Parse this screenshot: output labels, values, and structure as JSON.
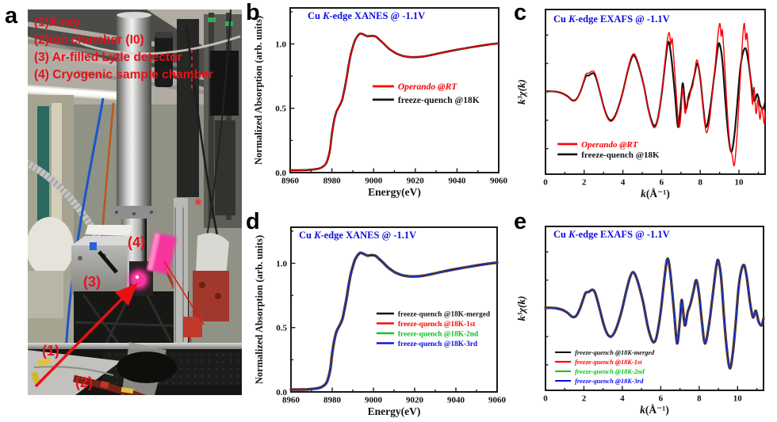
{
  "figure": {
    "background": "#ffffff",
    "panel_labels": {
      "a": "a",
      "b": "b",
      "c": "c",
      "d": "d",
      "e": "e"
    }
  },
  "photo": {
    "annotation_color": "#e8101b",
    "annotation_lines": {
      "line1": "(1)X-ray",
      "line2": "(2)ion chamber (I0)",
      "line3": "(3) Ar-filled Lytle detector",
      "line4": "(4) Cryogenic sample chamber"
    },
    "callout_labels": {
      "c1": "(1)",
      "c2": "(2)",
      "c3": "(3)",
      "c4": "(4)"
    }
  },
  "chart_data": {
    "shared_curves": {
      "xanes": [
        [
          8960,
          0.018
        ],
        [
          8964,
          0.018
        ],
        [
          8968,
          0.02
        ],
        [
          8971,
          0.024
        ],
        [
          8974,
          0.032
        ],
        [
          8976,
          0.05
        ],
        [
          8977.5,
          0.08
        ],
        [
          8979,
          0.17
        ],
        [
          8980,
          0.3
        ],
        [
          8981,
          0.4
        ],
        [
          8982,
          0.465
        ],
        [
          8983,
          0.5
        ],
        [
          8984,
          0.53
        ],
        [
          8985,
          0.57
        ],
        [
          8986,
          0.645
        ],
        [
          8987,
          0.73
        ],
        [
          8988,
          0.83
        ],
        [
          8989,
          0.915
        ],
        [
          8990,
          0.975
        ],
        [
          8991,
          1.025
        ],
        [
          8992,
          1.055
        ],
        [
          8993.5,
          1.08
        ],
        [
          8995,
          1.075
        ],
        [
          8997,
          1.06
        ],
        [
          8999,
          1.063
        ],
        [
          9001,
          1.058
        ],
        [
          9003,
          1.03
        ],
        [
          9005,
          1.0
        ],
        [
          9007,
          0.968
        ],
        [
          9009,
          0.944
        ],
        [
          9011,
          0.925
        ],
        [
          9014,
          0.907
        ],
        [
          9017,
          0.899
        ],
        [
          9020,
          0.897
        ],
        [
          9024,
          0.903
        ],
        [
          9028,
          0.915
        ],
        [
          9032,
          0.929
        ],
        [
          9036,
          0.943
        ],
        [
          9040,
          0.955
        ],
        [
          9045,
          0.969
        ],
        [
          9050,
          0.983
        ],
        [
          9055,
          0.995
        ],
        [
          9060,
          1.005
        ]
      ],
      "exafs_freeze_quench": [
        [
          0,
          0.01
        ],
        [
          0.3,
          0.01
        ],
        [
          0.6,
          0.0
        ],
        [
          0.9,
          -0.03
        ],
        [
          1.15,
          -0.08
        ],
        [
          1.4,
          -0.15
        ],
        [
          1.6,
          -0.13
        ],
        [
          1.8,
          0.0
        ],
        [
          2.0,
          0.2
        ],
        [
          2.1,
          0.28
        ],
        [
          2.25,
          0.29
        ],
        [
          2.45,
          0.33
        ],
        [
          2.6,
          0.26
        ],
        [
          2.8,
          0.02
        ],
        [
          3.0,
          -0.25
        ],
        [
          3.2,
          -0.44
        ],
        [
          3.4,
          -0.5
        ],
        [
          3.6,
          -0.42
        ],
        [
          3.8,
          -0.24
        ],
        [
          4.0,
          0.0
        ],
        [
          4.2,
          0.3
        ],
        [
          4.4,
          0.55
        ],
        [
          4.55,
          0.64
        ],
        [
          4.7,
          0.57
        ],
        [
          4.9,
          0.36
        ],
        [
          5.1,
          0.08
        ],
        [
          5.3,
          -0.28
        ],
        [
          5.5,
          -0.53
        ],
        [
          5.65,
          -0.6
        ],
        [
          5.8,
          -0.48
        ],
        [
          6.0,
          -0.05
        ],
        [
          6.2,
          0.55
        ],
        [
          6.35,
          0.88
        ],
        [
          6.5,
          0.62
        ],
        [
          6.7,
          -0.08
        ],
        [
          6.85,
          -0.62
        ],
        [
          7.0,
          -0.2
        ],
        [
          7.1,
          0.15
        ],
        [
          7.25,
          -0.3
        ],
        [
          7.4,
          -0.07
        ],
        [
          7.55,
          0.08
        ],
        [
          7.7,
          0.3
        ],
        [
          7.85,
          0.5
        ],
        [
          8.0,
          0.24
        ],
        [
          8.15,
          -0.26
        ],
        [
          8.3,
          -0.62
        ],
        [
          8.5,
          -0.32
        ],
        [
          8.7,
          0.22
        ],
        [
          8.9,
          0.76
        ],
        [
          9.0,
          0.84
        ],
        [
          9.15,
          0.52
        ],
        [
          9.3,
          -0.18
        ],
        [
          9.45,
          -0.76
        ],
        [
          9.6,
          -1.06
        ],
        [
          9.75,
          -0.8
        ],
        [
          9.9,
          -0.26
        ],
        [
          10.05,
          0.36
        ],
        [
          10.2,
          0.68
        ],
        [
          10.35,
          0.76
        ],
        [
          10.5,
          0.5
        ],
        [
          10.65,
          0.1
        ],
        [
          10.8,
          -0.16
        ],
        [
          10.95,
          -0.04
        ],
        [
          11.1,
          -0.24
        ],
        [
          11.25,
          -0.3
        ],
        [
          11.35,
          -0.18
        ]
      ],
      "exafs_operando_rt": [
        [
          0,
          0.01
        ],
        [
          0.3,
          0.01
        ],
        [
          0.6,
          0.0
        ],
        [
          0.9,
          -0.04
        ],
        [
          1.15,
          -0.09
        ],
        [
          1.4,
          -0.16
        ],
        [
          1.6,
          -0.14
        ],
        [
          1.8,
          0.0
        ],
        [
          2.0,
          0.22
        ],
        [
          2.1,
          0.32
        ],
        [
          2.25,
          0.33
        ],
        [
          2.45,
          0.37
        ],
        [
          2.6,
          0.29
        ],
        [
          2.8,
          0.03
        ],
        [
          3.0,
          -0.26
        ],
        [
          3.2,
          -0.46
        ],
        [
          3.4,
          -0.52
        ],
        [
          3.6,
          -0.44
        ],
        [
          3.8,
          -0.26
        ],
        [
          4.0,
          -0.01
        ],
        [
          4.2,
          0.31
        ],
        [
          4.4,
          0.58
        ],
        [
          4.55,
          0.67
        ],
        [
          4.7,
          0.6
        ],
        [
          4.9,
          0.38
        ],
        [
          5.1,
          0.07
        ],
        [
          5.3,
          -0.3
        ],
        [
          5.5,
          -0.56
        ],
        [
          5.65,
          -0.63
        ],
        [
          5.8,
          -0.5
        ],
        [
          6.0,
          -0.04
        ],
        [
          6.15,
          0.45
        ],
        [
          6.3,
          0.92
        ],
        [
          6.4,
          1.04
        ],
        [
          6.48,
          0.84
        ],
        [
          6.55,
          0.93
        ],
        [
          6.65,
          0.5
        ],
        [
          6.75,
          0.02
        ],
        [
          6.85,
          -0.48
        ],
        [
          6.92,
          -0.62
        ],
        [
          7.0,
          -0.4
        ],
        [
          7.08,
          0.05
        ],
        [
          7.15,
          -0.12
        ],
        [
          7.22,
          -0.38
        ],
        [
          7.32,
          -0.2
        ],
        [
          7.42,
          -0.12
        ],
        [
          7.52,
          0.02
        ],
        [
          7.62,
          0.12
        ],
        [
          7.72,
          0.38
        ],
        [
          7.82,
          0.56
        ],
        [
          7.92,
          0.44
        ],
        [
          8.02,
          0.18
        ],
        [
          8.12,
          -0.18
        ],
        [
          8.22,
          -0.52
        ],
        [
          8.32,
          -0.72
        ],
        [
          8.45,
          -0.56
        ],
        [
          8.55,
          -0.28
        ],
        [
          8.65,
          0.06
        ],
        [
          8.75,
          0.38
        ],
        [
          8.85,
          0.78
        ],
        [
          8.95,
          1.1
        ],
        [
          9.02,
          1.2
        ],
        [
          9.08,
          0.98
        ],
        [
          9.14,
          1.08
        ],
        [
          9.25,
          0.55
        ],
        [
          9.35,
          -0.08
        ],
        [
          9.45,
          -0.62
        ],
        [
          9.55,
          -0.98
        ],
        [
          9.65,
          -1.12
        ],
        [
          9.75,
          -1.3
        ],
        [
          9.85,
          -1.0
        ],
        [
          9.95,
          -0.5
        ],
        [
          10.05,
          0.15
        ],
        [
          10.15,
          0.72
        ],
        [
          10.22,
          1.08
        ],
        [
          10.28,
          1.2
        ],
        [
          10.35,
          0.92
        ],
        [
          10.42,
          1.02
        ],
        [
          10.52,
          0.52
        ],
        [
          10.62,
          0.12
        ],
        [
          10.7,
          -0.22
        ],
        [
          10.78,
          0.08
        ],
        [
          10.88,
          -0.38
        ],
        [
          10.98,
          -0.14
        ],
        [
          11.08,
          -0.48
        ],
        [
          11.18,
          -0.26
        ],
        [
          11.3,
          -0.56
        ],
        [
          11.35,
          -0.35
        ]
      ]
    },
    "charts": [
      {
        "id": "b",
        "type": "line",
        "title": "Cu K-edge XANES @ -1.1V",
        "title_color": "#0d0de0",
        "xlabel": "Energy(eV)",
        "ylabel": "Normalized Absorption (arb. units)",
        "xlim": [
          8960,
          9060
        ],
        "ylim": [
          0,
          1.28
        ],
        "xticks": [
          8960,
          8980,
          9000,
          9020,
          9040,
          9060
        ],
        "xminor_step": 10,
        "yticks": [
          0,
          0.5,
          1
        ],
        "ytick_labels": [
          "0.0",
          "0.5",
          "1.0"
        ],
        "yminor_step": 0.25,
        "grid": false,
        "legend_position": "center-right",
        "series": [
          {
            "name": "Operando @RT",
            "color": "#fe0000",
            "curve": "xanes",
            "width": 1.5,
            "legend_italic": true
          },
          {
            "name": "freeze-quench @18K",
            "color": "#141414",
            "curve": "xanes",
            "width": 2.6,
            "legend_italic": false
          }
        ],
        "draw_order": [
          1,
          0
        ]
      },
      {
        "id": "c",
        "type": "line",
        "title": "Cu K-edge EXAFS @ -1.1V",
        "title_color": "#0d0de0",
        "xlabel": "k(Å⁻¹)",
        "ylabel": "k³χ(k)",
        "xlim": [
          0,
          11.35
        ],
        "ylim": [
          -1.45,
          1.45
        ],
        "xticks": [
          0,
          2,
          4,
          6,
          8,
          10
        ],
        "xminor_step": 1,
        "yticks": [
          -1,
          -0.5,
          0,
          0.5,
          1
        ],
        "ytick_labels": [],
        "yminor_step": null,
        "grid": false,
        "legend_position": "lower-left",
        "series": [
          {
            "name": "Operando @RT",
            "color": "#fe0000",
            "curve": "exafs_operando_rt",
            "width": 1.4,
            "legend_italic": true
          },
          {
            "name": "freeze-quench @18K",
            "color": "#141414",
            "curve": "exafs_freeze_quench",
            "width": 2.2,
            "legend_italic": false
          }
        ],
        "draw_order": [
          1,
          0
        ]
      },
      {
        "id": "d",
        "type": "line",
        "title": "Cu K-edge XANES @ -1.1V",
        "title_color": "#0d0de0",
        "xlabel": "Energy(eV)",
        "ylabel": "Normalized Absorption (arb. units)",
        "xlim": [
          8960,
          9060
        ],
        "ylim": [
          0,
          1.28
        ],
        "xticks": [
          8960,
          8980,
          9000,
          9020,
          9040,
          9060
        ],
        "xminor_step": 10,
        "yticks": [
          0,
          0.5,
          1
        ],
        "ytick_labels": [
          "0.0",
          "0.5",
          "1.0"
        ],
        "yminor_step": 0.25,
        "grid": false,
        "legend_position": "center-right",
        "series": [
          {
            "name": "freeze-quench @18K-merged",
            "color": "#141414",
            "curve": "xanes",
            "width": 3.4,
            "legend_italic": false
          },
          {
            "name": "freeze-quench @18K-1st",
            "color": "#fe0000",
            "curve": "xanes",
            "width": 2.7,
            "legend_italic": false
          },
          {
            "name": "freeze-quench @18K-2nd",
            "color": "#00c714",
            "curve": "xanes",
            "width": 2.0,
            "legend_italic": false
          },
          {
            "name": "freeze-quench @18K-3rd",
            "color": "#0a0ae8",
            "curve": "xanes",
            "width": 1.3,
            "legend_italic": false
          }
        ],
        "draw_order": [
          0,
          1,
          2,
          3
        ]
      },
      {
        "id": "e",
        "type": "line",
        "title": "Cu K-edge EXAFS @ -1.1V",
        "title_color": "#0d0de0",
        "xlabel": "k(Å⁻¹)",
        "ylabel": "k³χ(k)",
        "xlim": [
          0,
          11.35
        ],
        "ylim": [
          -1.45,
          1.45
        ],
        "xticks": [
          0,
          2,
          4,
          6,
          8,
          10
        ],
        "xminor_step": 1,
        "yticks": [
          -1,
          -0.5,
          0,
          0.5,
          1
        ],
        "ytick_labels": [],
        "yminor_step": null,
        "grid": false,
        "legend_position": "lower-left",
        "series": [
          {
            "name": "freeze-quench @18K-merged",
            "color": "#141414",
            "curve": "exafs_freeze_quench",
            "width": 3.2,
            "legend_italic": true
          },
          {
            "name": "freeze-quench @18K-1st",
            "color": "#fe0000",
            "curve": "exafs_freeze_quench",
            "width": 2.5,
            "legend_italic": true
          },
          {
            "name": "freeze-quench @18K-2nd",
            "color": "#00c714",
            "curve": "exafs_freeze_quench",
            "width": 1.9,
            "legend_italic": true
          },
          {
            "name": "freeze-quench @18K-3rd",
            "color": "#0a0ae8",
            "curve": "exafs_freeze_quench",
            "width": 1.25,
            "legend_italic": true
          }
        ],
        "draw_order": [
          0,
          1,
          2,
          3
        ]
      }
    ]
  }
}
